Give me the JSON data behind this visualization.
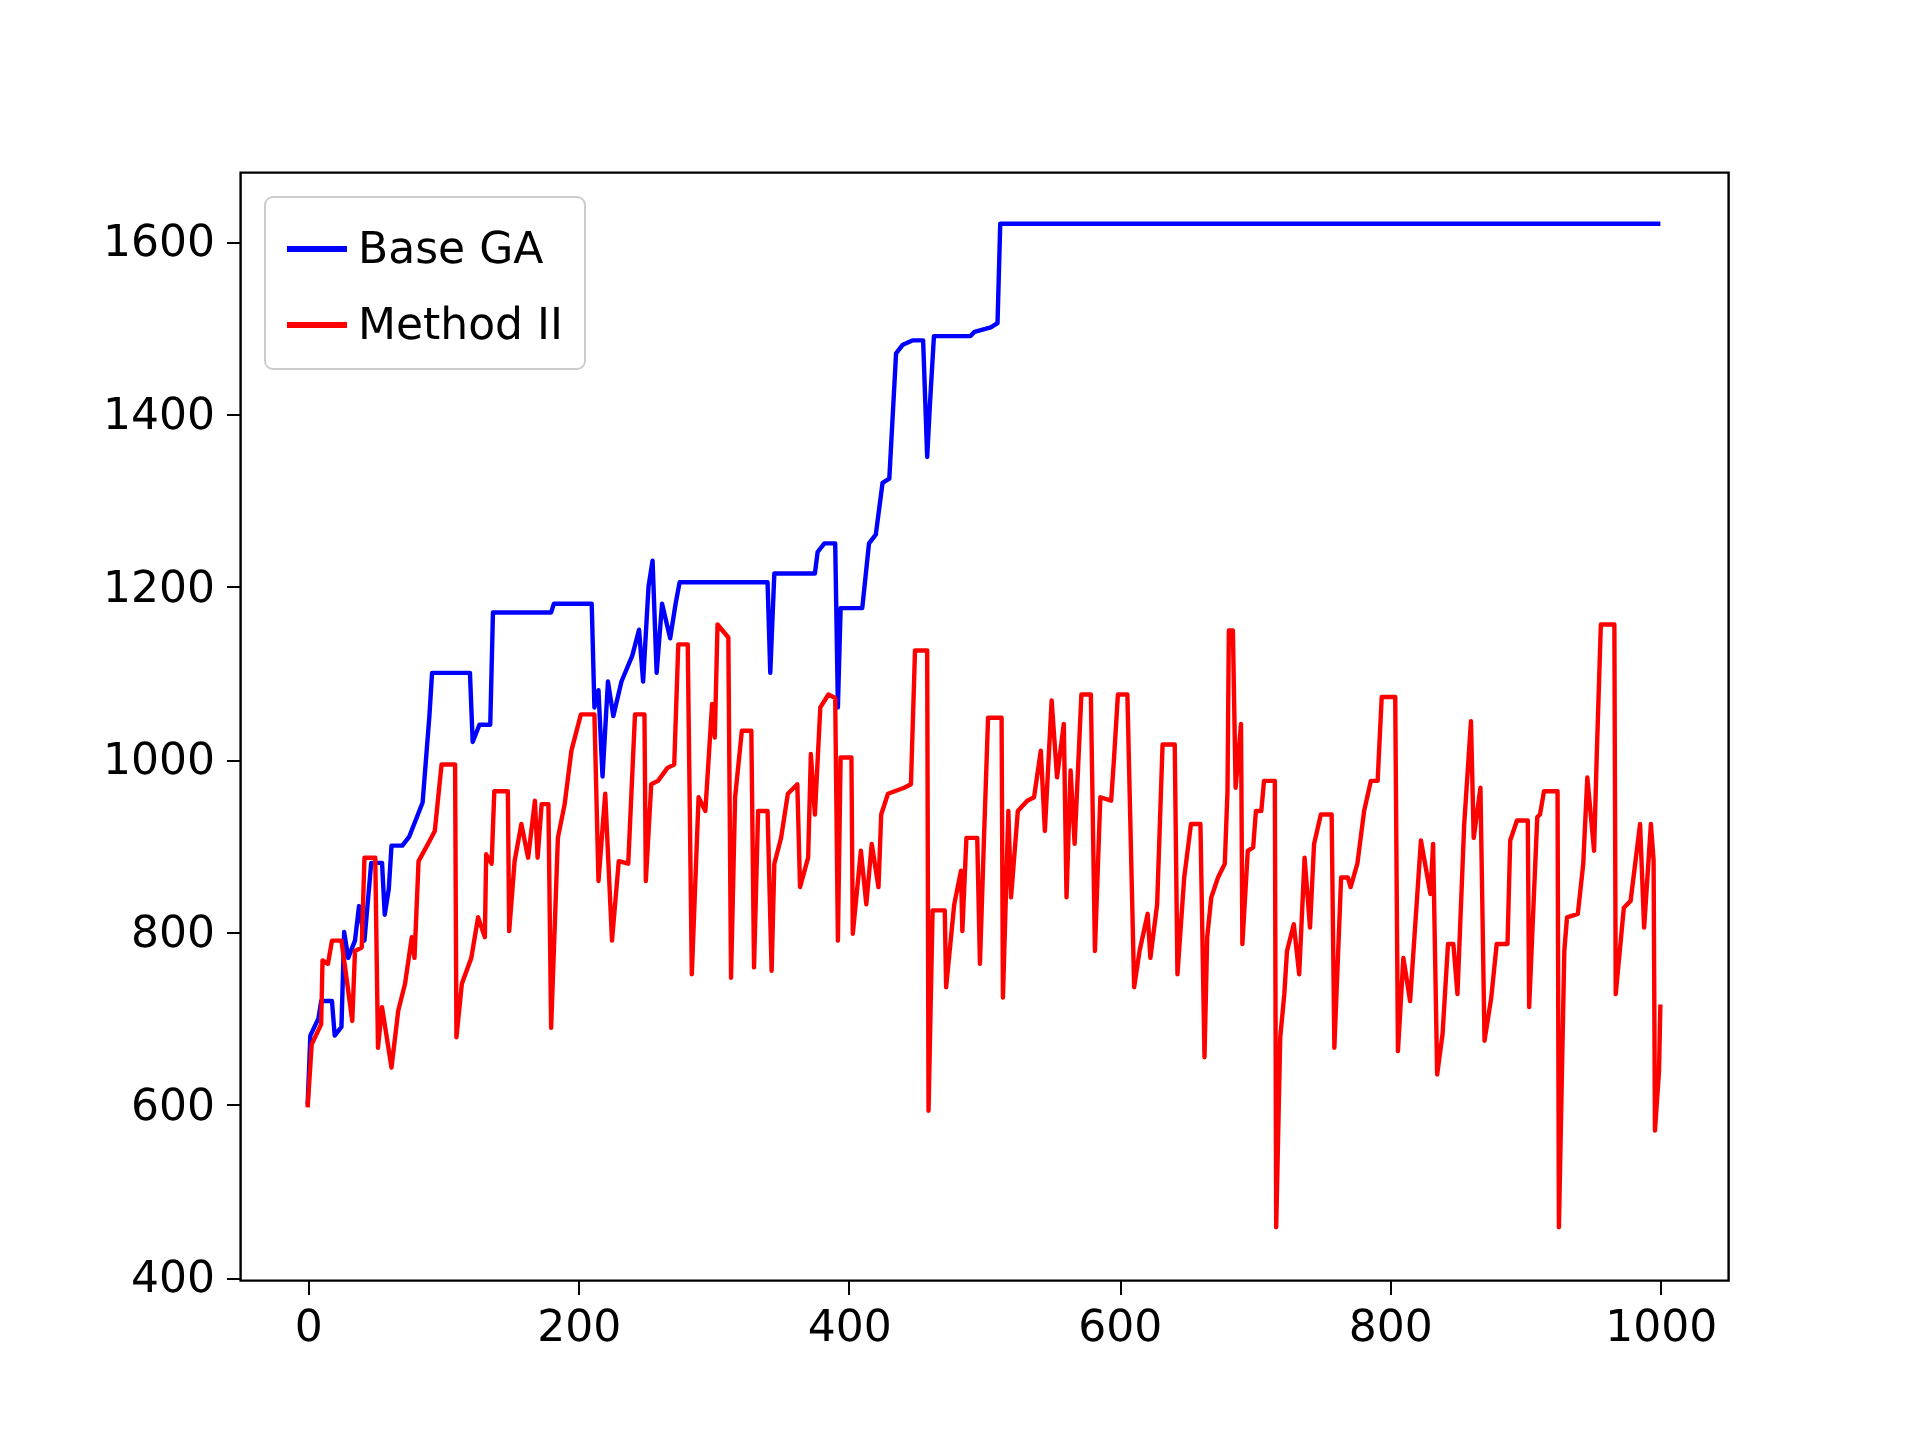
{
  "chart_data": {
    "type": "line",
    "xlim": [
      -50,
      1050
    ],
    "ylim": [
      397,
      1680
    ],
    "xticks": [
      0,
      200,
      400,
      600,
      800,
      1000
    ],
    "yticks": [
      400,
      600,
      800,
      1000,
      1200,
      1400,
      1600
    ],
    "grid": false,
    "legend": "top left",
    "line_style": "solid",
    "marker": "none",
    "series": [
      {
        "name": "Base GA",
        "color": "#0000ff",
        "x": [
          0,
          2,
          8,
          10,
          18,
          20,
          25,
          27,
          30,
          35,
          38,
          42,
          47,
          55,
          57,
          60,
          62,
          70,
          75,
          80,
          85,
          88,
          90,
          92,
          120,
          122,
          127,
          135,
          137,
          180,
          182,
          210,
          212,
          215,
          218,
          222,
          226,
          232,
          240,
          245,
          248,
          252,
          255,
          258,
          262,
          268,
          272,
          275,
          340,
          342,
          345,
          375,
          377,
          382,
          390,
          392,
          394,
          410,
          415,
          420,
          425,
          430,
          435,
          440,
          447,
          455,
          458,
          460,
          463,
          490,
          493,
          505,
          510,
          512,
          1000
        ],
        "values": [
          600,
          680,
          700,
          720,
          720,
          680,
          690,
          800,
          770,
          790,
          830,
          790,
          880,
          880,
          820,
          850,
          900,
          900,
          910,
          930,
          950,
          1010,
          1050,
          1100,
          1100,
          1020,
          1040,
          1040,
          1170,
          1170,
          1180,
          1180,
          1060,
          1080,
          980,
          1090,
          1050,
          1090,
          1120,
          1150,
          1090,
          1200,
          1230,
          1100,
          1180,
          1140,
          1180,
          1205,
          1205,
          1100,
          1215,
          1215,
          1240,
          1250,
          1250,
          1060,
          1175,
          1175,
          1250,
          1260,
          1320,
          1325,
          1470,
          1480,
          1485,
          1485,
          1350,
          1410,
          1490,
          1490,
          1495,
          1500,
          1505,
          1620,
          1620
        ]
      },
      {
        "name": "Method II",
        "color": "#ff0000",
        "x": [
          0,
          3,
          10,
          11,
          15,
          18,
          25,
          33,
          35,
          40,
          42,
          50,
          52,
          55,
          62,
          67,
          72,
          77,
          79,
          82,
          89,
          94,
          99,
          109,
          110,
          114,
          121,
          126,
          131,
          132,
          136,
          138,
          148,
          149,
          153,
          158,
          163,
          168,
          170,
          173,
          178,
          180,
          185,
          190,
          195,
          202,
          212,
          215,
          220,
          225,
          230,
          237,
          242,
          249,
          250,
          254,
          259,
          266,
          271,
          274,
          281,
          284,
          289,
          294,
          299,
          301,
          303,
          311,
          313,
          316,
          321,
          328,
          330,
          333,
          340,
          343,
          345,
          350,
          355,
          362,
          364,
          370,
          372,
          375,
          379,
          385,
          390,
          392,
          394,
          402,
          403,
          409,
          413,
          417,
          422,
          424,
          429,
          441,
          446,
          449,
          458,
          459,
          462,
          471,
          472,
          478,
          483,
          484,
          487,
          495,
          497,
          500,
          503,
          513,
          514,
          518,
          520,
          525,
          532,
          537,
          542,
          545,
          550,
          554,
          559,
          561,
          564,
          567,
          572,
          579,
          582,
          586,
          594,
          596,
          599,
          606,
          611,
          615,
          621,
          623,
          628,
          632,
          641,
          643,
          648,
          653,
          660,
          663,
          665,
          668,
          673,
          678,
          680,
          681,
          684,
          686,
          690,
          691,
          695,
          699,
          701,
          705,
          707,
          715,
          716,
          719,
          722,
          724,
          729,
          733,
          737,
          741,
          744,
          749,
          757,
          759,
          764,
          769,
          771,
          776,
          781,
          786,
          791,
          794,
          804,
          806,
          810,
          815,
          823,
          830,
          832,
          835,
          839,
          843,
          847,
          850,
          855,
          860,
          862,
          867,
          870,
          875,
          879,
          887,
          889,
          894,
          902,
          903,
          909,
          911,
          914,
          924,
          925,
          929,
          931,
          939,
          943,
          946,
          951,
          953,
          956,
          966,
          967,
          973,
          978,
          985,
          988,
          993,
          995,
          996,
          999,
          1000
        ],
        "values": [
          597,
          670,
          693,
          767,
          763,
          790,
          790,
          697,
          778,
          782,
          886,
          886,
          666,
          713,
          643,
          709,
          740,
          794,
          770,
          882,
          902,
          917,
          994,
          994,
          678,
          740,
          770,
          817,
          794,
          890,
          879,
          963,
          963,
          801,
          882,
          925,
          886,
          952,
          886,
          948,
          948,
          689,
          909,
          948,
          1010,
          1052,
          1052,
          859,
          960,
          790,
          882,
          879,
          1052,
          1052,
          859,
          971,
          975,
          990,
          994,
          1133,
          1133,
          751,
          956,
          940,
          1064,
          1025,
          1156,
          1141,
          747,
          956,
          1033,
          1033,
          759,
          940,
          940,
          755,
          879,
          909,
          960,
          971,
          852,
          886,
          1006,
          936,
          1060,
          1075,
          1071,
          790,
          1002,
          1002,
          798,
          894,
          832,
          902,
          852,
          936,
          960,
          967,
          971,
          1126,
          1126,
          593,
          825,
          825,
          736,
          832,
          871,
          801,
          909,
          909,
          763,
          909,
          1048,
          1048,
          724,
          940,
          840,
          940,
          952,
          956,
          1010,
          917,
          1068,
          979,
          1041,
          840,
          987,
          902,
          1075,
          1075,
          778,
          956,
          952,
          998,
          1075,
          1075,
          736,
          778,
          821,
          770,
          832,
          1017,
          1017,
          751,
          863,
          925,
          925,
          655,
          794,
          840,
          863,
          879,
          963,
          1149,
          1149,
          967,
          1041,
          786,
          894,
          898,
          940,
          940,
          975,
          975,
          458,
          678,
          728,
          778,
          809,
          751,
          886,
          805,
          902,
          936,
          936,
          666,
          863,
          863,
          852,
          879,
          940,
          975,
          975,
          1072,
          1072,
          662,
          770,
          720,
          906,
          844,
          902,
          635,
          682,
          786,
          786,
          728,
          925,
          1044,
          909,
          967,
          674,
          724,
          786,
          786,
          906,
          929,
          929,
          713,
          933,
          936,
          963,
          963,
          458,
          778,
          817,
          821,
          879,
          979,
          894,
          1006,
          1156,
          1156,
          728,
          828,
          836,
          925,
          805,
          925,
          883,
          570,
          639,
          716
        ]
      }
    ]
  }
}
